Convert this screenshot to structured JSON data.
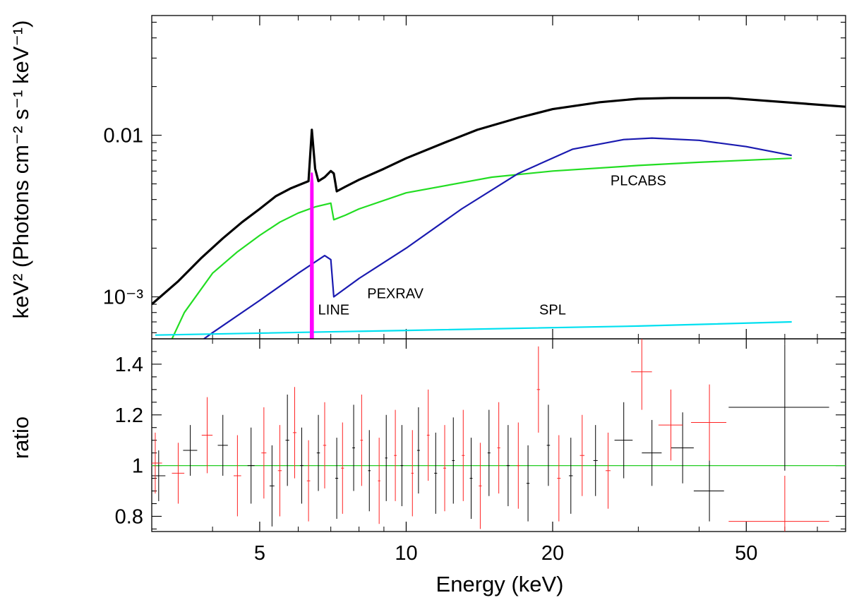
{
  "chart_data": [
    {
      "type": "line",
      "panel": "top",
      "xlabel": "Energy (keV)",
      "ylabel": "keV² (Photons cm⁻² s⁻¹ keV⁻¹)",
      "x_scale": "log",
      "y_scale": "log",
      "xlim": [
        3,
        80
      ],
      "ylim": [
        0.00055,
        0.055
      ],
      "y_tick_labels": [
        {
          "value": 0.01,
          "label": "0.01"
        },
        {
          "value": 0.001,
          "label": "10⁻³"
        }
      ],
      "series": [
        {
          "name": "total model",
          "color": "#000000",
          "x": [
            3,
            3.4,
            3.8,
            4.2,
            4.6,
            5.0,
            5.4,
            5.8,
            6.1,
            6.3,
            6.4,
            6.5,
            6.6,
            6.8,
            7.0,
            7.1,
            7.2,
            7.5,
            8,
            9,
            10,
            12,
            14,
            17,
            20,
            25,
            30,
            35,
            46,
            80
          ],
          "y": [
            0.0009,
            0.00125,
            0.00175,
            0.0023,
            0.0029,
            0.0035,
            0.0042,
            0.0047,
            0.005,
            0.0052,
            0.0108,
            0.0062,
            0.0052,
            0.0055,
            0.006,
            0.0058,
            0.0045,
            0.0048,
            0.0053,
            0.0062,
            0.0072,
            0.009,
            0.0108,
            0.0128,
            0.0145,
            0.016,
            0.0168,
            0.017,
            0.017,
            0.015
          ]
        },
        {
          "name": "PLCABS",
          "color": "#22dd22",
          "x": [
            3.2,
            3.5,
            4,
            4.5,
            5,
            5.5,
            6,
            6.5,
            7,
            7.1,
            7.5,
            8,
            10,
            15,
            20,
            30,
            40,
            62
          ],
          "y": [
            0.00045,
            0.0008,
            0.0014,
            0.0019,
            0.0024,
            0.0029,
            0.0033,
            0.0036,
            0.0038,
            0.003,
            0.0032,
            0.0035,
            0.0044,
            0.0055,
            0.006,
            0.0065,
            0.0068,
            0.0072
          ]
        },
        {
          "name": "PEXRAV",
          "color": "#1a1ab0",
          "x": [
            3.5,
            4,
            5,
            6,
            6.8,
            7.0,
            7.1,
            8,
            10,
            13,
            17,
            22,
            28,
            32,
            40,
            50,
            62
          ],
          "y": [
            0.00045,
            0.0006,
            0.00095,
            0.0014,
            0.0018,
            0.0017,
            0.001,
            0.0013,
            0.002,
            0.0035,
            0.0058,
            0.0082,
            0.0094,
            0.0096,
            0.0093,
            0.0085,
            0.0075
          ]
        },
        {
          "name": "SPL",
          "color": "#00e0f0",
          "x": [
            3.05,
            10,
            30,
            62
          ],
          "y": [
            0.00058,
            0.00062,
            0.00066,
            0.0007
          ]
        },
        {
          "name": "LINE",
          "color": "#ff00ff",
          "x": [
            6.37,
            6.38,
            6.4,
            6.42,
            6.43
          ],
          "y": [
            0.00045,
            0.005,
            0.0058,
            0.005,
            0.00045
          ]
        }
      ],
      "annotations": [
        {
          "text": "PLCABS",
          "x": 30,
          "y": 0.0049
        },
        {
          "text": "PEXRAV",
          "x": 9.5,
          "y": 0.00098
        },
        {
          "text": "LINE",
          "x": 7.1,
          "y": 0.00078
        },
        {
          "text": "SPL",
          "x": 20,
          "y": 0.00078
        }
      ]
    },
    {
      "type": "scatter",
      "panel": "bottom",
      "xlabel": "Energy (keV)",
      "ylabel": "ratio",
      "x_scale": "log",
      "xlim": [
        3,
        80
      ],
      "ylim": [
        0.74,
        1.5
      ],
      "y_ticks": [
        0.8,
        1,
        1.2,
        1.4
      ],
      "y_tick_labels": [
        "0.8",
        "1",
        "1.2",
        "1.4"
      ],
      "x_ticks": [
        5,
        10,
        20,
        50
      ],
      "x_tick_labels": [
        "5",
        "10",
        "20",
        "50"
      ],
      "reference_line": {
        "y": 1,
        "color": "#22cc22"
      },
      "series": [
        {
          "name": "black data",
          "color": "#000000",
          "points": [
            {
              "x": 3.1,
              "y": 0.96,
              "xe": 0.1,
              "ye": 0.1
            },
            {
              "x": 3.6,
              "y": 1.06,
              "xe": 0.12,
              "ye": 0.1
            },
            {
              "x": 4.2,
              "y": 1.08,
              "xe": 0.1,
              "ye": 0.12
            },
            {
              "x": 4.8,
              "y": 1.0,
              "xe": 0.08,
              "ye": 0.15
            },
            {
              "x": 5.3,
              "y": 0.92,
              "xe": 0.06,
              "ye": 0.16
            },
            {
              "x": 5.7,
              "y": 1.1,
              "xe": 0.05,
              "ye": 0.18
            },
            {
              "x": 6.1,
              "y": 1.0,
              "xe": 0.05,
              "ye": 0.15
            },
            {
              "x": 6.6,
              "y": 1.05,
              "xe": 0.05,
              "ye": 0.15
            },
            {
              "x": 7.2,
              "y": 0.95,
              "xe": 0.05,
              "ye": 0.16
            },
            {
              "x": 7.8,
              "y": 1.07,
              "xe": 0.05,
              "ye": 0.17
            },
            {
              "x": 8.4,
              "y": 0.98,
              "xe": 0.05,
              "ye": 0.16
            },
            {
              "x": 9.1,
              "y": 1.03,
              "xe": 0.05,
              "ye": 0.17
            },
            {
              "x": 9.8,
              "y": 1.0,
              "xe": 0.06,
              "ye": 0.16
            },
            {
              "x": 10.6,
              "y": 1.06,
              "xe": 0.07,
              "ye": 0.17
            },
            {
              "x": 11.5,
              "y": 0.97,
              "xe": 0.08,
              "ye": 0.16
            },
            {
              "x": 12.5,
              "y": 1.02,
              "xe": 0.08,
              "ye": 0.17
            },
            {
              "x": 13.6,
              "y": 0.95,
              "xe": 0.09,
              "ye": 0.16
            },
            {
              "x": 14.8,
              "y": 1.05,
              "xe": 0.1,
              "ye": 0.17
            },
            {
              "x": 16.2,
              "y": 1.0,
              "xe": 0.12,
              "ye": 0.16
            },
            {
              "x": 17.8,
              "y": 0.93,
              "xe": 0.13,
              "ye": 0.15
            },
            {
              "x": 19.6,
              "y": 1.08,
              "xe": 0.15,
              "ye": 0.16
            },
            {
              "x": 21.8,
              "y": 0.96,
              "xe": 0.2,
              "ye": 0.15
            },
            {
              "x": 24.5,
              "y": 1.02,
              "xe": 0.25,
              "ye": 0.14
            },
            {
              "x": 28,
              "y": 1.1,
              "xe": 1.2,
              "ye": 0.15
            },
            {
              "x": 32,
              "y": 1.05,
              "xe": 1.5,
              "ye": 0.13
            },
            {
              "x": 37,
              "y": 1.07,
              "xe": 2,
              "ye": 0.14
            },
            {
              "x": 42,
              "y": 0.9,
              "xe": 3,
              "ye": 0.12
            },
            {
              "x": 60,
              "y": 1.23,
              "xe": 14,
              "ye": 0.25
            }
          ]
        },
        {
          "name": "red data",
          "color": "#ff2222",
          "points": [
            {
              "x": 3.05,
              "y": 1.01,
              "xe": 0.1,
              "ye": 0.12
            },
            {
              "x": 3.4,
              "y": 0.97,
              "xe": 0.1,
              "ye": 0.12
            },
            {
              "x": 3.9,
              "y": 1.12,
              "xe": 0.1,
              "ye": 0.15
            },
            {
              "x": 4.5,
              "y": 0.96,
              "xe": 0.08,
              "ye": 0.16
            },
            {
              "x": 5.1,
              "y": 1.05,
              "xe": 0.06,
              "ye": 0.18
            },
            {
              "x": 5.5,
              "y": 0.98,
              "xe": 0.05,
              "ye": 0.18
            },
            {
              "x": 5.9,
              "y": 1.13,
              "xe": 0.05,
              "ye": 0.18
            },
            {
              "x": 6.3,
              "y": 0.94,
              "xe": 0.05,
              "ye": 0.16
            },
            {
              "x": 6.8,
              "y": 1.08,
              "xe": 0.05,
              "ye": 0.17
            },
            {
              "x": 7.4,
              "y": 0.99,
              "xe": 0.05,
              "ye": 0.18
            },
            {
              "x": 8.1,
              "y": 1.1,
              "xe": 0.05,
              "ye": 0.18
            },
            {
              "x": 8.8,
              "y": 0.94,
              "xe": 0.05,
              "ye": 0.17
            },
            {
              "x": 9.5,
              "y": 1.04,
              "xe": 0.06,
              "ye": 0.18
            },
            {
              "x": 10.3,
              "y": 0.97,
              "xe": 0.06,
              "ye": 0.17
            },
            {
              "x": 11.1,
              "y": 1.12,
              "xe": 0.07,
              "ye": 0.18
            },
            {
              "x": 12.0,
              "y": 0.99,
              "xe": 0.08,
              "ye": 0.17
            },
            {
              "x": 13.1,
              "y": 1.04,
              "xe": 0.09,
              "ye": 0.18
            },
            {
              "x": 14.2,
              "y": 0.92,
              "xe": 0.1,
              "ye": 0.17
            },
            {
              "x": 15.5,
              "y": 1.07,
              "xe": 0.11,
              "ye": 0.18
            },
            {
              "x": 17.0,
              "y": 1.0,
              "xe": 0.12,
              "ye": 0.17
            },
            {
              "x": 18.7,
              "y": 1.3,
              "xe": 0.14,
              "ye": 0.17
            },
            {
              "x": 20.6,
              "y": 0.95,
              "xe": 0.17,
              "ye": 0.17
            },
            {
              "x": 23,
              "y": 1.04,
              "xe": 0.25,
              "ye": 0.16
            },
            {
              "x": 26,
              "y": 0.98,
              "xe": 0.3,
              "ye": 0.15
            },
            {
              "x": 30.5,
              "y": 1.37,
              "xe": 1.5,
              "ye": 0.15
            },
            {
              "x": 35,
              "y": 1.16,
              "xe": 2,
              "ye": 0.14
            },
            {
              "x": 42,
              "y": 1.17,
              "xe": 3.5,
              "ye": 0.15
            },
            {
              "x": 60,
              "y": 0.78,
              "xe": 14,
              "ye": 0.18
            }
          ]
        }
      ]
    }
  ]
}
